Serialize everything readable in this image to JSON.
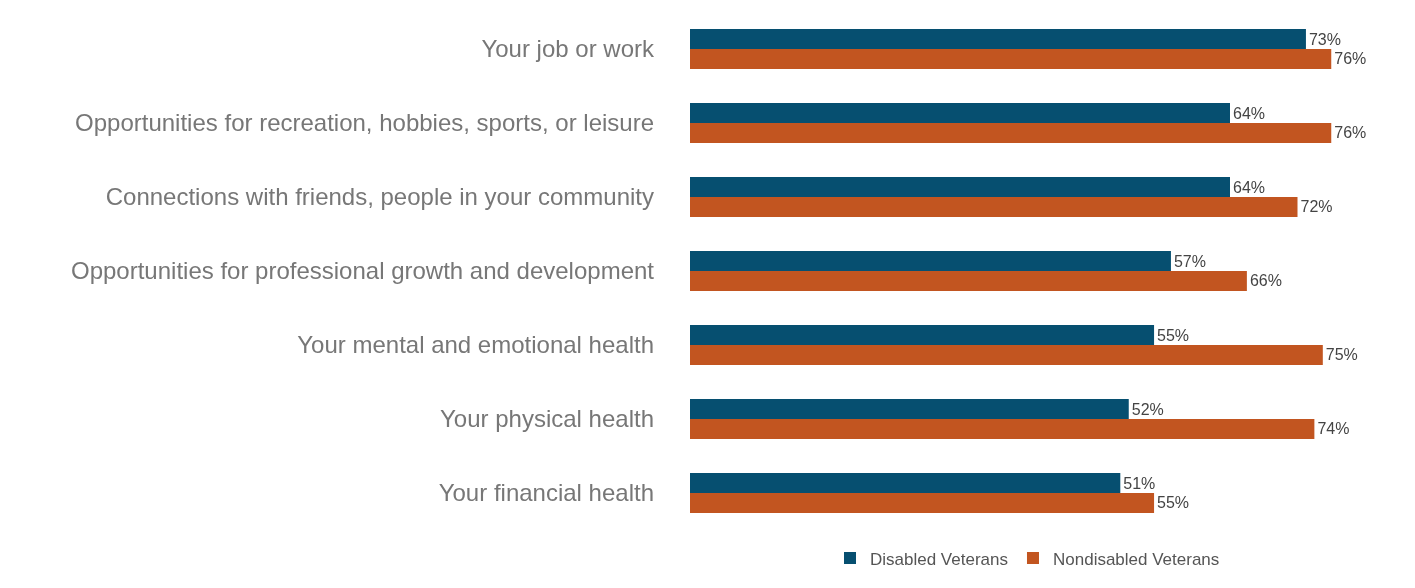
{
  "chart_data": {
    "type": "bar",
    "orientation": "horizontal",
    "categories": [
      "Your job or work",
      "Opportunities for recreation, hobbies, sports, or leisure",
      "Connections with friends, people in your community",
      "Opportunities for professional growth and development",
      "Your mental and emotional health",
      "Your physical health",
      "Your financial health"
    ],
    "series": [
      {
        "name": "Disabled Veterans",
        "color": "#064f70",
        "values": [
          73,
          64,
          64,
          57,
          55,
          52,
          51
        ],
        "value_labels": [
          "73%",
          "64%",
          "64%",
          "57%",
          "55%",
          "52%",
          "51%"
        ]
      },
      {
        "name": "Nondisabled Veterans",
        "color": "#c25520",
        "values": [
          76,
          76,
          72,
          66,
          75,
          74,
          55
        ],
        "value_labels": [
          "76%",
          "76%",
          "72%",
          "66%",
          "75%",
          "74%",
          "55%"
        ]
      }
    ],
    "tick_labels": "y",
    "legend": "bottom"
  }
}
